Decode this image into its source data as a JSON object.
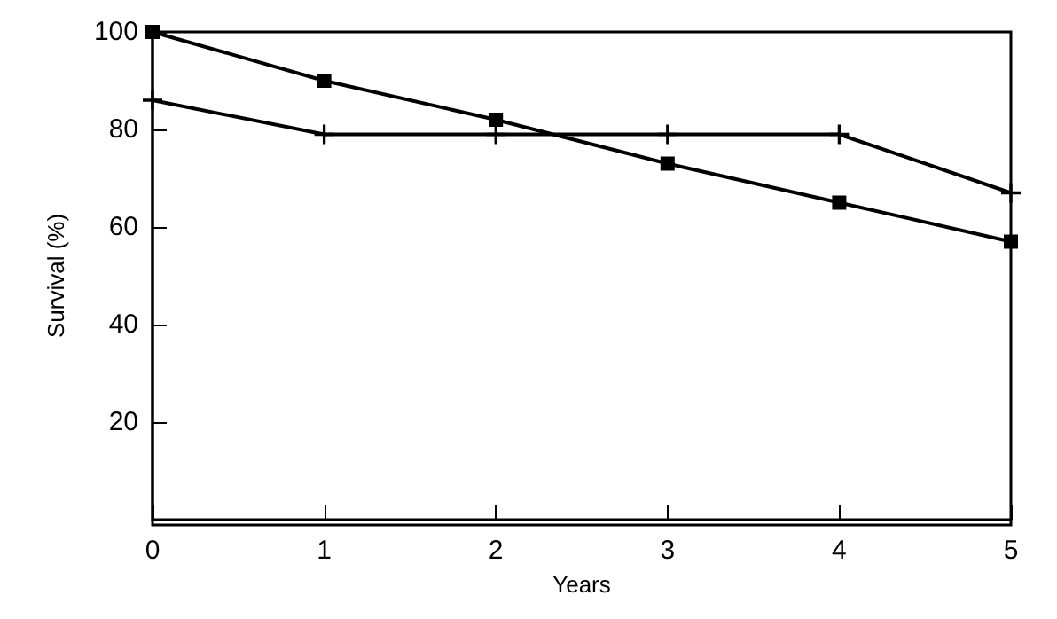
{
  "chart_data": {
    "type": "line",
    "xlabel": "Years",
    "ylabel": "Survival (%)",
    "x": [
      0,
      1,
      2,
      3,
      4,
      5
    ],
    "xlim": [
      0,
      5
    ],
    "xticks": [
      0,
      1,
      2,
      3,
      4,
      5
    ],
    "ylim": [
      0,
      100
    ],
    "yticks": [
      20,
      40,
      60,
      80,
      100
    ],
    "grid": false,
    "line_style": "solid",
    "series": [
      {
        "color": "#000000",
        "marker": "square",
        "values": [
          100,
          90,
          82,
          73,
          65,
          57
        ]
      },
      {
        "color": "#000000",
        "marker": "cross",
        "values": [
          86,
          79,
          79,
          79,
          79,
          67
        ]
      }
    ]
  }
}
